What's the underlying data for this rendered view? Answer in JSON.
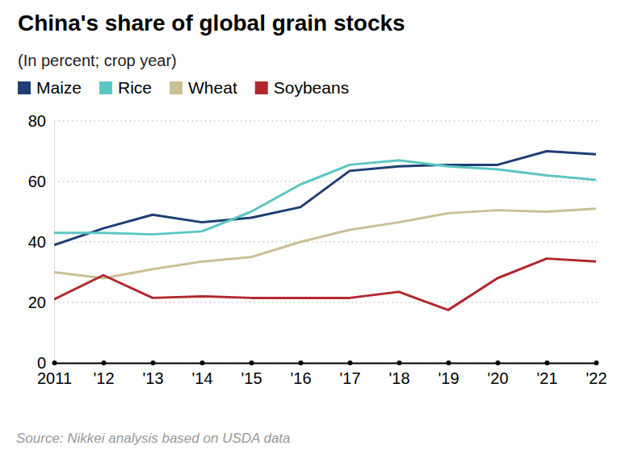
{
  "chart_data": {
    "type": "line",
    "title": "China's share of global grain stocks",
    "subtitle": "(In percent; crop year)",
    "source": "Source: Nikkei analysis based on USDA data",
    "x": [
      2011,
      2012,
      2013,
      2014,
      2015,
      2016,
      2017,
      2018,
      2019,
      2020,
      2021,
      2022
    ],
    "xlim": [
      2011,
      2022
    ],
    "xticks": [
      {
        "value": 2011,
        "label": "2011"
      },
      {
        "value": 2012,
        "label": "'12"
      },
      {
        "value": 2013,
        "label": "'13"
      },
      {
        "value": 2014,
        "label": "'14"
      },
      {
        "value": 2015,
        "label": "'15"
      },
      {
        "value": 2016,
        "label": "'16"
      },
      {
        "value": 2017,
        "label": "'17"
      },
      {
        "value": 2018,
        "label": "'18"
      },
      {
        "value": 2019,
        "label": "'19"
      },
      {
        "value": 2020,
        "label": "'20"
      },
      {
        "value": 2021,
        "label": "'21"
      },
      {
        "value": 2022,
        "label": "'22"
      }
    ],
    "ylim": [
      0,
      80
    ],
    "yticks": [
      0,
      20,
      40,
      60,
      80
    ],
    "grid": true,
    "legend": "top-left",
    "series": [
      {
        "name": "Maize",
        "color": "#1d3f73",
        "values": [
          39,
          44.5,
          49,
          46.5,
          48,
          51.5,
          63.5,
          65,
          65.5,
          65.5,
          70,
          69
        ]
      },
      {
        "name": "Rice",
        "color": "#5cc6c2",
        "values": [
          43,
          43,
          42.5,
          43.5,
          50,
          59,
          65.5,
          67,
          65,
          64,
          62,
          60.5
        ]
      },
      {
        "name": "Wheat",
        "color": "#cbbf95",
        "values": [
          30,
          28,
          31,
          33.5,
          35,
          40,
          44,
          46.5,
          49.5,
          50.5,
          50,
          51
        ]
      },
      {
        "name": "Soybeans",
        "color": "#b0282e",
        "values": [
          21,
          29,
          21.5,
          22,
          21.5,
          21.5,
          21.5,
          23.5,
          17.5,
          28,
          34.5,
          33.5
        ]
      }
    ]
  }
}
